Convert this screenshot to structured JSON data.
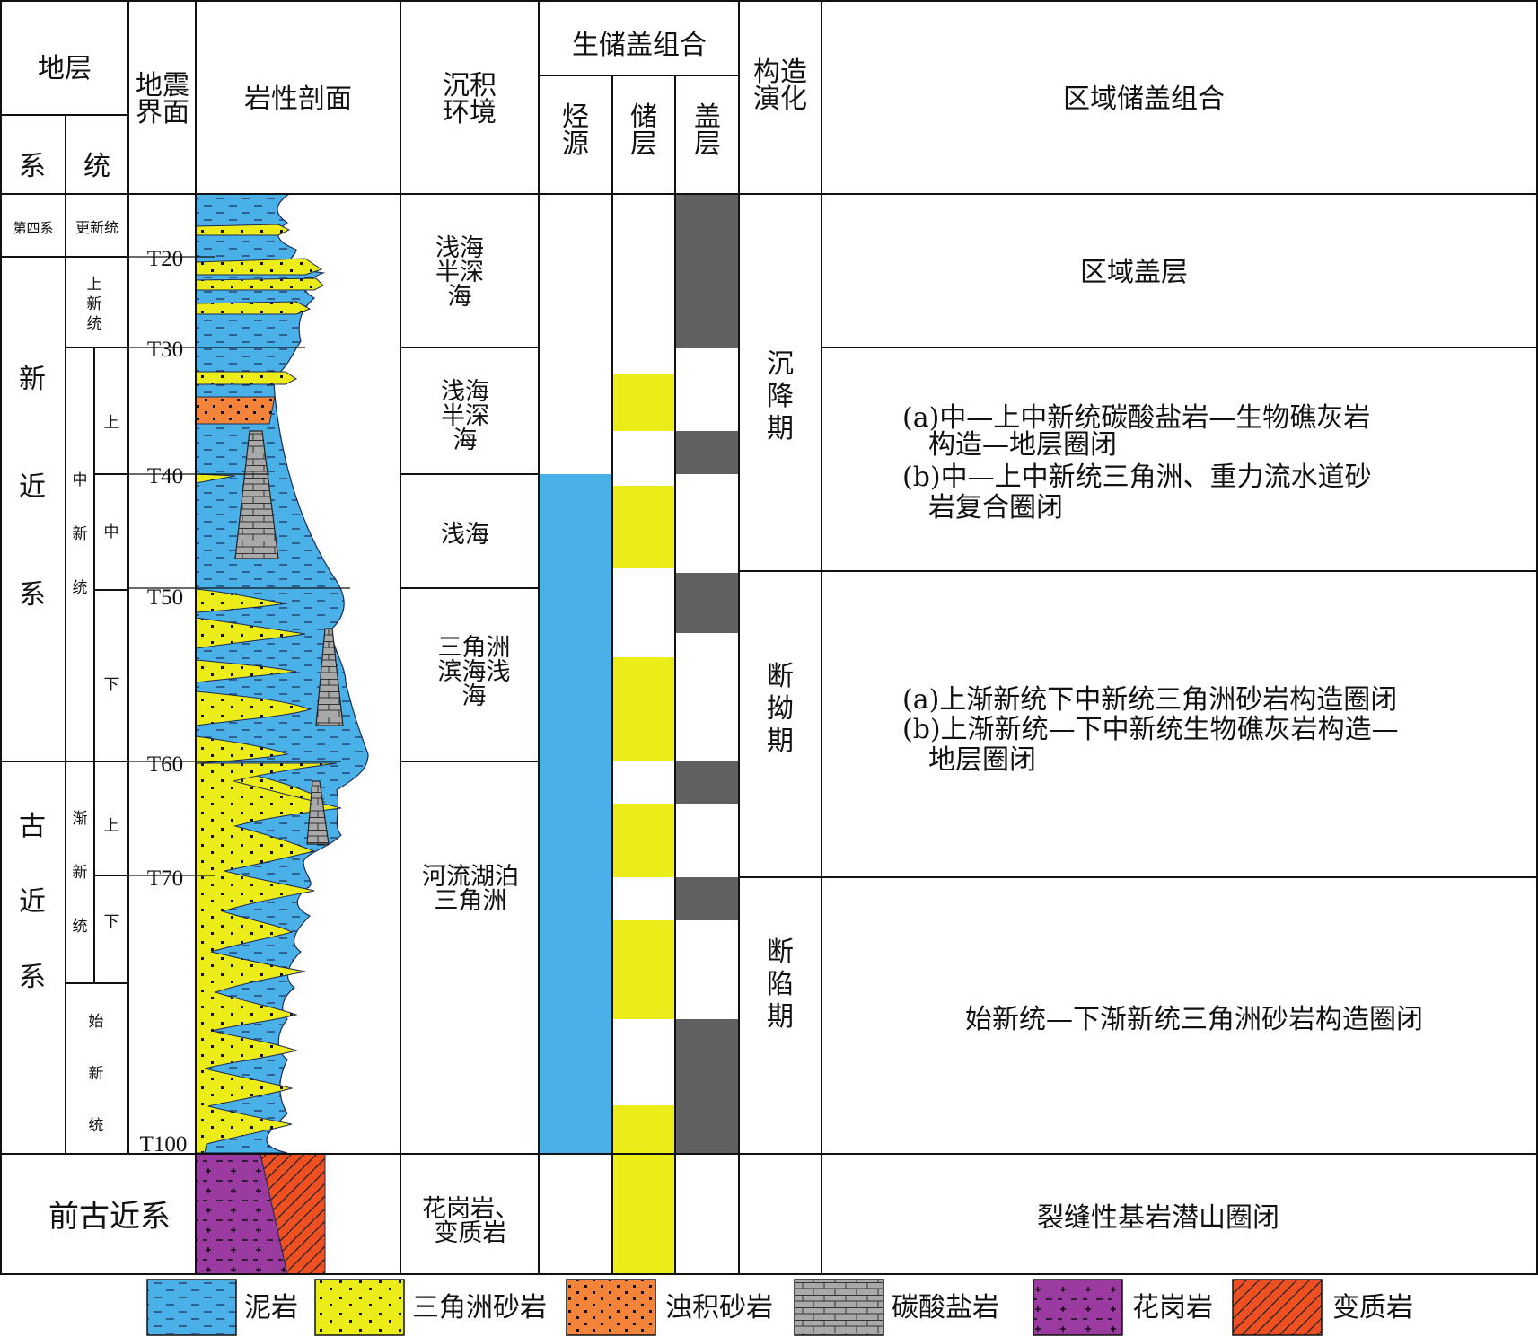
{
  "headers": {
    "strata": "地层",
    "system": "系",
    "series": "统",
    "seismic": "地震界面",
    "lithology": "岩性剖面",
    "environment": "沉积环境",
    "petroleum_system": "生储盖组合",
    "source": "烃源",
    "reservoir": "储层",
    "cap": "盖层",
    "tectonic": "构造演化",
    "regional": "区域储盖组合"
  },
  "systems": [
    {
      "label": "第四系"
    },
    {
      "label": "新近系"
    },
    {
      "label": "古近系"
    },
    {
      "label": "前古近系"
    }
  ],
  "series": [
    {
      "label": "更新统"
    },
    {
      "label": "上新统"
    },
    {
      "label": "中新统"
    },
    {
      "label": "渐新统"
    },
    {
      "label": "始新统"
    }
  ],
  "subseries": [
    {
      "label": "上"
    },
    {
      "label": "中"
    },
    {
      "label": "下"
    },
    {
      "label": "上"
    },
    {
      "label": "下"
    }
  ],
  "seismic_horizons": [
    "T20",
    "T30",
    "T40",
    "T50",
    "T60",
    "T70",
    "T100"
  ],
  "environments": [
    {
      "label": "浅海半深海"
    },
    {
      "label": "浅海半深海"
    },
    {
      "label": "浅海"
    },
    {
      "label": "三角洲滨海浅海"
    },
    {
      "label": "河流湖泊三角洲"
    },
    {
      "label": "花岗岩、变质岩"
    }
  ],
  "tectonic_stages": [
    {
      "label": "沉降期"
    },
    {
      "label": "断拗期"
    },
    {
      "label": "断陷期"
    }
  ],
  "regional_combos": [
    {
      "lines": [
        "区域盖层"
      ]
    },
    {
      "lines": [
        "(a)中—上中新统碳酸盐岩—生物礁灰岩",
        "构造—地层圈闭",
        "(b)中—上中新统三角洲、重力流水道砂",
        "岩复合圈闭"
      ]
    },
    {
      "lines": [
        "(a)上渐新统下中新统三角洲砂岩构造圈闭",
        "(b)上渐新统—下中新统生物礁灰岩构造—",
        "地层圈闭"
      ]
    },
    {
      "lines": [
        "始新统—下渐新统三角洲砂岩构造圈闭"
      ]
    },
    {
      "lines": [
        "裂缝性基岩潜山圈闭"
      ]
    }
  ],
  "legend": [
    {
      "name": "mudstone",
      "label": "泥岩"
    },
    {
      "name": "delta-sandstone",
      "label": "三角洲砂岩"
    },
    {
      "name": "turbidite-sandstone",
      "label": "浊积砂岩"
    },
    {
      "name": "carbonate",
      "label": "碳酸盐岩"
    },
    {
      "name": "granite",
      "label": "花岗岩"
    },
    {
      "name": "metamorphic",
      "label": "变质岩"
    }
  ],
  "colors": {
    "mudstone": "#49b0e8",
    "sandstone": "#ecec19",
    "turbidite": "#f3843a",
    "carbonate": "#a9a9a9",
    "granite": "#9b3aa0",
    "metamorphic": "#ef5022",
    "source_rock": "#49b0e8",
    "reservoir": "#ecec19",
    "cap_rock": "#606060"
  }
}
